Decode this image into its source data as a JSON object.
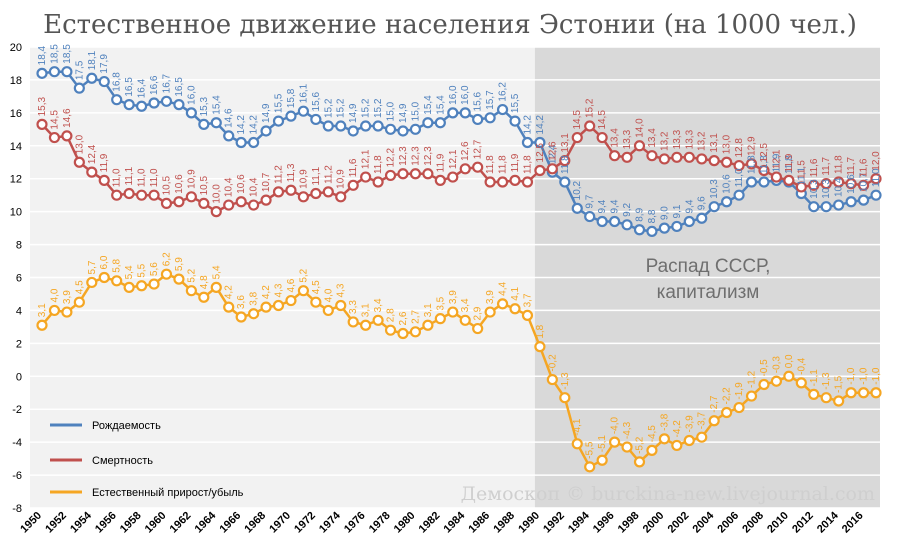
{
  "chart_data": {
    "type": "line",
    "title": "Естественное движение населения Эстонии (на 1000 чел.)",
    "x": [
      1950,
      1951,
      1952,
      1953,
      1954,
      1955,
      1956,
      1957,
      1958,
      1959,
      1960,
      1961,
      1962,
      1963,
      1964,
      1965,
      1966,
      1967,
      1968,
      1969,
      1970,
      1971,
      1972,
      1973,
      1974,
      1975,
      1976,
      1977,
      1978,
      1979,
      1980,
      1981,
      1982,
      1983,
      1984,
      1985,
      1986,
      1987,
      1988,
      1989,
      1990,
      1991,
      1992,
      1993,
      1994,
      1995,
      1996,
      1997,
      1998,
      1999,
      2000,
      2001,
      2002,
      2003,
      2004,
      2005,
      2006,
      2007,
      2008,
      2009,
      2010,
      2011,
      2012,
      2013,
      2014,
      2015,
      2016,
      2017
    ],
    "xticks": [
      1950,
      1952,
      1954,
      1956,
      1958,
      1960,
      1962,
      1964,
      1966,
      1968,
      1970,
      1972,
      1974,
      1976,
      1978,
      1980,
      1982,
      1984,
      1986,
      1988,
      1990,
      1992,
      1994,
      1996,
      1998,
      2000,
      2002,
      2004,
      2006,
      2008,
      2010,
      2012,
      2014,
      2016
    ],
    "ylim": [
      -8,
      20
    ],
    "yticks": [
      -8,
      -6,
      -4,
      -2,
      0,
      2,
      4,
      6,
      8,
      10,
      12,
      14,
      16,
      18,
      20
    ],
    "series": [
      {
        "name": "Рождаемость",
        "color": "#4f81bd",
        "values": [
          18.4,
          18.5,
          18.5,
          17.5,
          18.1,
          17.9,
          16.8,
          16.5,
          16.4,
          16.6,
          16.7,
          16.5,
          16.0,
          15.3,
          15.4,
          14.6,
          14.2,
          14.2,
          14.9,
          15.5,
          15.8,
          16.1,
          15.6,
          15.2,
          15.2,
          14.9,
          15.2,
          15.2,
          15.0,
          14.9,
          15.0,
          15.4,
          15.4,
          16.0,
          16.0,
          15.6,
          15.7,
          16.2,
          15.5,
          14.2,
          14.2,
          12.4,
          11.8,
          10.2,
          9.7,
          9.4,
          9.4,
          9.2,
          8.9,
          8.8,
          9.0,
          9.1,
          9.4,
          9.6,
          10.3,
          10.6,
          11.0,
          11.8,
          11.8,
          11.9,
          11.8,
          11.1,
          10.3,
          10.3,
          10.4,
          10.6,
          10.7,
          11.0
        ]
      },
      {
        "name": "Смертность",
        "color": "#c0504d",
        "values": [
          15.3,
          14.5,
          14.6,
          13.0,
          12.4,
          11.9,
          11.0,
          11.1,
          11.0,
          11.0,
          10.5,
          10.6,
          10.9,
          10.5,
          10.0,
          10.4,
          10.6,
          10.4,
          10.7,
          11.2,
          11.3,
          10.9,
          11.1,
          11.2,
          10.9,
          11.6,
          12.1,
          11.8,
          12.2,
          12.3,
          12.3,
          12.3,
          11.9,
          12.1,
          12.6,
          12.7,
          11.8,
          11.8,
          11.9,
          11.8,
          12.5,
          12.6,
          13.1,
          14.5,
          15.2,
          14.5,
          13.4,
          13.3,
          14.0,
          13.4,
          13.2,
          13.3,
          13.3,
          13.2,
          13.1,
          13.0,
          12.8,
          12.9,
          12.5,
          12.1,
          11.9,
          11.5,
          11.6,
          11.7,
          11.8,
          11.7,
          11.6,
          12.0
        ]
      },
      {
        "name": "Естественный прирост/убыль",
        "color": "#f5a623",
        "values": [
          3.1,
          4.0,
          3.9,
          4.5,
          5.7,
          6.0,
          5.8,
          5.4,
          5.5,
          5.6,
          6.2,
          5.9,
          5.2,
          4.8,
          5.4,
          4.2,
          3.6,
          3.8,
          4.2,
          4.3,
          4.6,
          5.2,
          4.5,
          4.0,
          4.3,
          3.3,
          3.1,
          3.4,
          2.8,
          2.6,
          2.7,
          3.1,
          3.5,
          3.9,
          3.4,
          2.9,
          3.9,
          4.4,
          4.1,
          3.7,
          1.8,
          -0.2,
          -1.3,
          -4.1,
          -5.5,
          -5.1,
          -4.0,
          -4.3,
          -5.2,
          -4.5,
          -3.8,
          -4.2,
          -3.9,
          -3.7,
          -2.7,
          -2.2,
          -1.9,
          -1.2,
          -0.5,
          -0.3,
          0.0,
          -0.4,
          -1.1,
          -1.3,
          -1.5,
          -1.0,
          -1.0,
          -1.0
        ]
      }
    ],
    "annotation": "Распад СССР, капитализм",
    "shaded_from_year": 1990,
    "legend_position": "left-bottom",
    "grid": true
  },
  "watermark": "Демоскоп © burckina-new.livejournal.com",
  "colors": {
    "left_background": "#f2f2f2",
    "right_background": "#d9d9d9",
    "grid": "#ffffff"
  }
}
